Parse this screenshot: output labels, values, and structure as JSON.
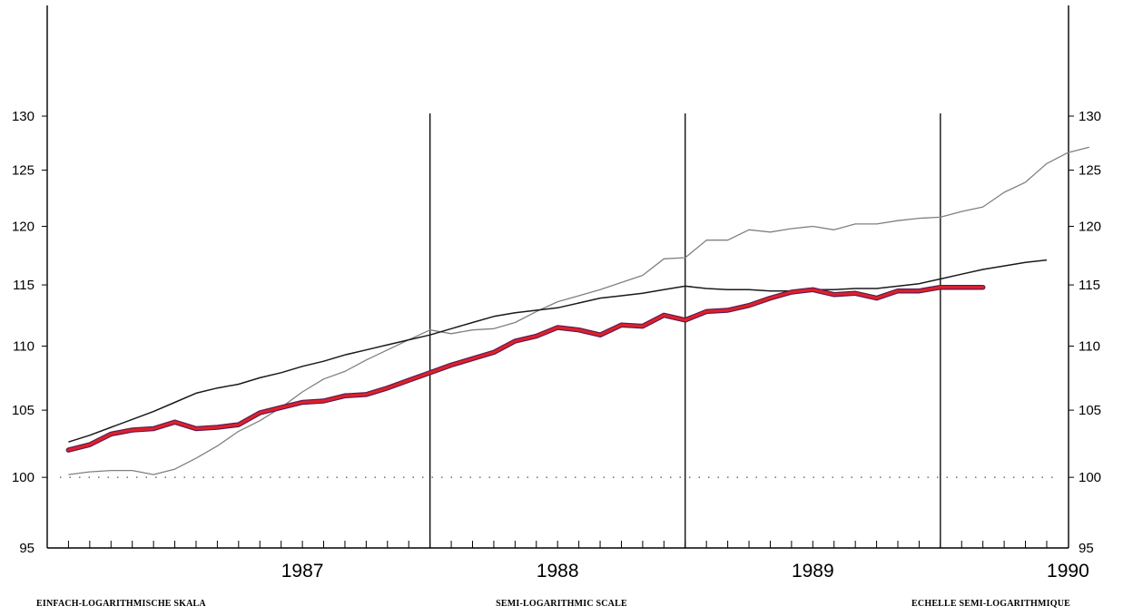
{
  "chart_data": {
    "type": "line",
    "scale": "log",
    "ylim": [
      95,
      130
    ],
    "yticks": [
      "95",
      "100",
      "105",
      "110",
      "115",
      "120",
      "125",
      "130"
    ],
    "x_years": [
      "1987",
      "1988",
      "1989",
      "1990"
    ],
    "xlim": [
      "1986-07",
      "1990-06"
    ],
    "reference_line": 100,
    "grid": false,
    "series": [
      {
        "color": "#808080",
        "points": [
          [
            "1986-08",
            100.2
          ],
          [
            "1986-09",
            100.4
          ],
          [
            "1986-10",
            100.5
          ],
          [
            "1986-11",
            100.5
          ],
          [
            "1986-12",
            100.2
          ],
          [
            "1987-01",
            100.6
          ],
          [
            "1987-02",
            101.4
          ],
          [
            "1987-03",
            102.3
          ],
          [
            "1987-04",
            103.4
          ],
          [
            "1987-05",
            104.2
          ],
          [
            "1987-06",
            105.2
          ],
          [
            "1987-07",
            106.4
          ],
          [
            "1987-08",
            107.4
          ],
          [
            "1987-09",
            108.0
          ],
          [
            "1987-10",
            108.9
          ],
          [
            "1987-11",
            109.7
          ],
          [
            "1987-12",
            110.5
          ],
          [
            "1988-01",
            111.3
          ],
          [
            "1988-02",
            111.0
          ],
          [
            "1988-03",
            111.3
          ],
          [
            "1988-04",
            111.4
          ],
          [
            "1988-05",
            111.9
          ],
          [
            "1988-06",
            112.8
          ],
          [
            "1988-07",
            113.6
          ],
          [
            "1988-08",
            114.1
          ],
          [
            "1988-09",
            114.6
          ],
          [
            "1988-10",
            115.2
          ],
          [
            "1988-11",
            115.8
          ],
          [
            "1988-12",
            117.2
          ],
          [
            "1989-01",
            117.3
          ],
          [
            "1989-02",
            118.8
          ],
          [
            "1989-03",
            118.8
          ],
          [
            "1989-04",
            119.7
          ],
          [
            "1989-05",
            119.5
          ],
          [
            "1989-06",
            119.8
          ],
          [
            "1989-07",
            120.0
          ],
          [
            "1989-08",
            119.7
          ],
          [
            "1989-09",
            120.2
          ],
          [
            "1989-10",
            120.2
          ],
          [
            "1989-11",
            120.5
          ],
          [
            "1989-12",
            120.7
          ],
          [
            "1990-01",
            120.8
          ],
          [
            "1990-02",
            121.3
          ],
          [
            "1990-03",
            121.7
          ],
          [
            "1990-04",
            123.0
          ],
          [
            "1990-05",
            123.9
          ],
          [
            "1990-06",
            125.6
          ],
          [
            "1990-07",
            126.6
          ],
          [
            "1990-08",
            127.1
          ]
        ]
      },
      {
        "color": "#1a1a1a",
        "points": [
          [
            "1986-08",
            102.6
          ],
          [
            "1986-09",
            103.1
          ],
          [
            "1986-10",
            103.7
          ],
          [
            "1986-11",
            104.3
          ],
          [
            "1986-12",
            104.9
          ],
          [
            "1987-01",
            105.6
          ],
          [
            "1987-02",
            106.3
          ],
          [
            "1987-03",
            106.7
          ],
          [
            "1987-04",
            107.0
          ],
          [
            "1987-05",
            107.5
          ],
          [
            "1987-06",
            107.9
          ],
          [
            "1987-07",
            108.4
          ],
          [
            "1987-08",
            108.8
          ],
          [
            "1987-09",
            109.3
          ],
          [
            "1987-10",
            109.7
          ],
          [
            "1987-11",
            110.1
          ],
          [
            "1987-12",
            110.5
          ],
          [
            "1988-01",
            110.9
          ],
          [
            "1988-02",
            111.4
          ],
          [
            "1988-03",
            111.9
          ],
          [
            "1988-04",
            112.4
          ],
          [
            "1988-05",
            112.7
          ],
          [
            "1988-06",
            112.9
          ],
          [
            "1988-07",
            113.1
          ],
          [
            "1988-08",
            113.5
          ],
          [
            "1988-09",
            113.9
          ],
          [
            "1988-10",
            114.1
          ],
          [
            "1988-11",
            114.3
          ],
          [
            "1988-12",
            114.6
          ],
          [
            "1989-01",
            114.9
          ],
          [
            "1989-02",
            114.7
          ],
          [
            "1989-03",
            114.6
          ],
          [
            "1989-04",
            114.6
          ],
          [
            "1989-05",
            114.5
          ],
          [
            "1989-06",
            114.5
          ],
          [
            "1989-07",
            114.6
          ],
          [
            "1989-08",
            114.6
          ],
          [
            "1989-09",
            114.7
          ],
          [
            "1989-10",
            114.7
          ],
          [
            "1989-11",
            114.9
          ],
          [
            "1989-12",
            115.1
          ],
          [
            "1990-01",
            115.5
          ],
          [
            "1990-02",
            115.9
          ],
          [
            "1990-03",
            116.3
          ],
          [
            "1990-04",
            116.6
          ],
          [
            "1990-05",
            116.9
          ],
          [
            "1990-06",
            117.1
          ]
        ]
      },
      {
        "color": "#e0202a",
        "outline": "#5a1a50",
        "points": [
          [
            "1986-08",
            102.0
          ],
          [
            "1986-09",
            102.4
          ],
          [
            "1986-10",
            103.2
          ],
          [
            "1986-11",
            103.5
          ],
          [
            "1986-12",
            103.6
          ],
          [
            "1987-01",
            104.1
          ],
          [
            "1987-02",
            103.6
          ],
          [
            "1987-03",
            103.7
          ],
          [
            "1987-04",
            103.9
          ],
          [
            "1987-05",
            104.8
          ],
          [
            "1987-06",
            105.2
          ],
          [
            "1987-07",
            105.6
          ],
          [
            "1987-08",
            105.7
          ],
          [
            "1987-09",
            106.1
          ],
          [
            "1987-10",
            106.2
          ],
          [
            "1987-11",
            106.7
          ],
          [
            "1987-12",
            107.3
          ],
          [
            "1988-01",
            107.9
          ],
          [
            "1988-02",
            108.5
          ],
          [
            "1988-03",
            109.0
          ],
          [
            "1988-04",
            109.5
          ],
          [
            "1988-05",
            110.4
          ],
          [
            "1988-06",
            110.8
          ],
          [
            "1988-07",
            111.5
          ],
          [
            "1988-08",
            111.3
          ],
          [
            "1988-09",
            110.9
          ],
          [
            "1988-10",
            111.7
          ],
          [
            "1988-11",
            111.6
          ],
          [
            "1988-12",
            112.5
          ],
          [
            "1989-01",
            112.1
          ],
          [
            "1989-02",
            112.8
          ],
          [
            "1989-03",
            112.9
          ],
          [
            "1989-04",
            113.3
          ],
          [
            "1989-05",
            113.9
          ],
          [
            "1989-06",
            114.4
          ],
          [
            "1989-07",
            114.6
          ],
          [
            "1989-08",
            114.2
          ],
          [
            "1989-09",
            114.3
          ],
          [
            "1989-10",
            113.9
          ],
          [
            "1989-11",
            114.5
          ],
          [
            "1989-12",
            114.5
          ],
          [
            "1990-01",
            114.8
          ],
          [
            "1990-02",
            114.8
          ],
          [
            "1990-03",
            114.8
          ]
        ]
      }
    ]
  },
  "footer": {
    "left": "EINFACH-LOGARITHMISCHE SKALA",
    "center": "SEMI-LOGARITHMIC SCALE",
    "right": "ECHELLE SEMI-LOGARITHMIQUE"
  }
}
